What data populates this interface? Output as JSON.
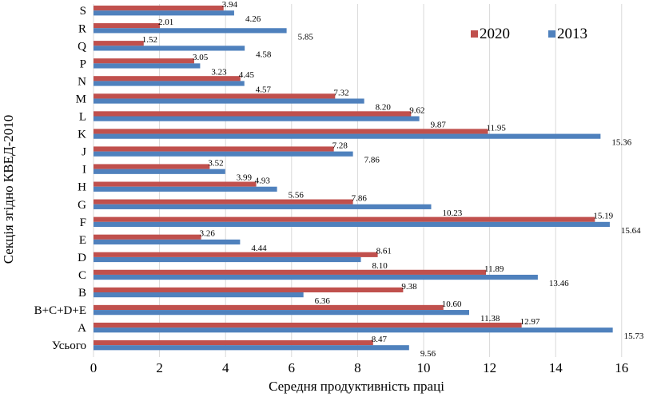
{
  "chart_data": {
    "type": "bar",
    "orientation": "horizontal",
    "categories": [
      "S",
      "R",
      "Q",
      "P",
      "N",
      "M",
      "L",
      "K",
      "J",
      "I",
      "H",
      "G",
      "F",
      "E",
      "D",
      "C",
      "B",
      "B+C+D+E",
      "A",
      "Усього"
    ],
    "series": [
      {
        "name": "2020",
        "color": "#C0504D",
        "values": [
          3.94,
          2.01,
          1.52,
          3.05,
          4.45,
          7.32,
          9.62,
          11.95,
          7.28,
          3.52,
          4.93,
          7.86,
          15.19,
          3.26,
          8.61,
          11.89,
          9.38,
          10.6,
          12.97,
          8.47
        ],
        "labels": [
          "3.94",
          "2.01",
          "1.52",
          "3.05",
          "4.45",
          "7.32",
          "9.62",
          "11.95",
          "7.28",
          "3.52",
          "4.93",
          "7.86",
          "15.19",
          "3.26",
          "8.61",
          "11.89",
          "9.38",
          "10.60",
          "12.97",
          "8.47"
        ]
      },
      {
        "name": "2013",
        "color": "#4F81BD",
        "values": [
          4.26,
          5.85,
          4.58,
          3.23,
          4.57,
          8.2,
          9.87,
          15.36,
          7.86,
          3.99,
          5.56,
          10.23,
          15.64,
          4.44,
          8.1,
          13.46,
          6.36,
          11.38,
          15.73,
          9.56
        ],
        "labels": [
          "4.26",
          "5.85",
          "4.58",
          "3.23",
          "4.57",
          "8.20",
          "9.87",
          "15.36",
          "7.86",
          "3.99",
          "5.56",
          "10.23",
          "15.64",
          "4.44",
          "8.10",
          "13.46",
          "6.36",
          "11.38",
          "15.73",
          "9.56"
        ]
      }
    ],
    "xlim": [
      0,
      16
    ],
    "xticks": [
      "0",
      "2",
      "4",
      "6",
      "8",
      "10",
      "12",
      "14",
      "16"
    ],
    "xlabel": "Середня продуктивність праці",
    "ylabel": "Секція згідно КВЕД-2010",
    "grid": "vertical",
    "legend_position": "top-right"
  }
}
